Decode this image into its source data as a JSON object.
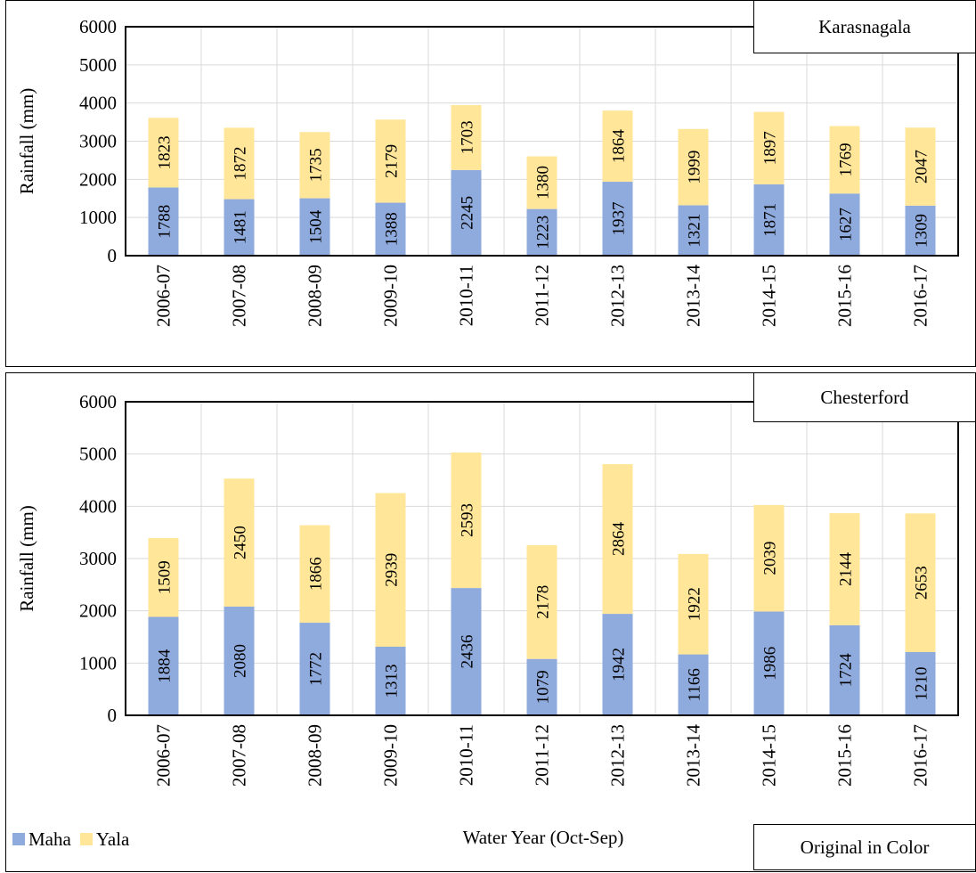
{
  "colors": {
    "maha": "#8faadc",
    "yala": "#ffe699",
    "grid": "#d9d9d9",
    "axis": "#000000"
  },
  "legend": {
    "maha": "Maha",
    "yala": "Yala"
  },
  "x_title": "Water Year (Oct-Sep)",
  "note": "Original in Color",
  "chart_data": [
    {
      "type": "bar",
      "stacked": true,
      "station": "Karasnagala",
      "ylabel": "Rainfall (mm)",
      "ylim": [
        0,
        6000
      ],
      "yticks": [
        0,
        1000,
        2000,
        3000,
        4000,
        5000,
        6000
      ],
      "grid": true,
      "categories": [
        "2006-07",
        "2007-08",
        "2008-09",
        "2009-10",
        "2010-11",
        "2011-12",
        "2012-13",
        "2013-14",
        "2014-15",
        "2015-16",
        "2016-17"
      ],
      "series": [
        {
          "name": "Maha",
          "values": [
            1788,
            1481,
            1504,
            1388,
            2245,
            1223,
            1937,
            1321,
            1871,
            1627,
            1309
          ]
        },
        {
          "name": "Yala",
          "values": [
            1823,
            1872,
            1735,
            2179,
            1703,
            1380,
            1864,
            1999,
            1897,
            1769,
            2047
          ]
        }
      ]
    },
    {
      "type": "bar",
      "stacked": true,
      "station": "Chesterford",
      "ylabel": "Rainfall (mm)",
      "ylim": [
        0,
        6000
      ],
      "yticks": [
        0,
        1000,
        2000,
        3000,
        4000,
        5000,
        6000
      ],
      "grid": true,
      "categories": [
        "2006-07",
        "2007-08",
        "2008-09",
        "2009-10",
        "2010-11",
        "2011-12",
        "2012-13",
        "2013-14",
        "2014-15",
        "2015-16",
        "2016-17"
      ],
      "series": [
        {
          "name": "Maha",
          "values": [
            1884,
            2080,
            1772,
            1313,
            2436,
            1079,
            1942,
            1166,
            1986,
            1724,
            1210
          ]
        },
        {
          "name": "Yala",
          "values": [
            1509,
            2450,
            1866,
            2939,
            2593,
            2178,
            2864,
            1922,
            2039,
            2144,
            2653
          ]
        }
      ]
    }
  ]
}
